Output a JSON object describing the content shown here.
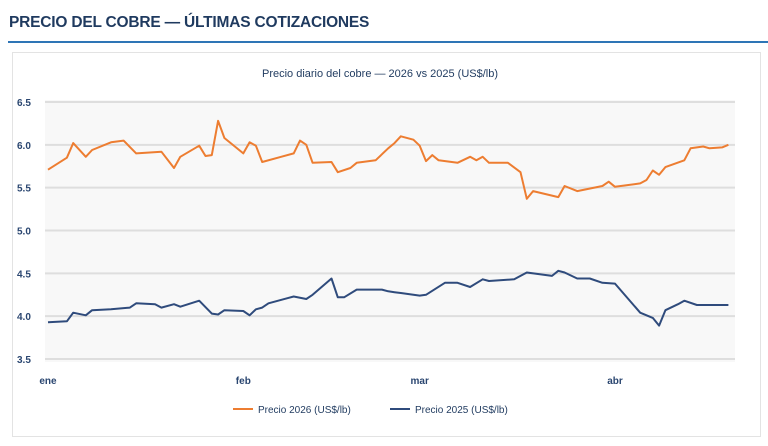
{
  "header": {
    "title": "PRECIO DEL COBRE — ÚLTIMAS COTIZACIONES"
  },
  "chart_data": {
    "type": "line",
    "title": "Precio diario del cobre — 2026 vs 2025 (US$/lb)",
    "xlabel": "",
    "ylabel": "",
    "ylim": [
      3.5,
      6.5
    ],
    "yticks": [
      "6.5",
      "6.0",
      "5.5",
      "5.0",
      "4.5",
      "4.0",
      "3.5"
    ],
    "xticks": [
      {
        "label": "ene",
        "date": "01-01"
      },
      {
        "label": "feb",
        "date": "02-01"
      },
      {
        "label": "mar",
        "date": "03-01"
      },
      {
        "label": "abr",
        "date": "04-01"
      }
    ],
    "grid": true,
    "legend_position": "bottom",
    "series": [
      {
        "name": "Precio 2026 (US$/lb)",
        "color": "#ed7d31",
        "points": [
          [
            "01-01",
            5.71
          ],
          [
            "01-04",
            5.85
          ],
          [
            "01-05",
            6.02
          ],
          [
            "01-07",
            5.86
          ],
          [
            "01-08",
            5.94
          ],
          [
            "01-11",
            6.03
          ],
          [
            "01-13",
            6.05
          ],
          [
            "01-15",
            5.9
          ],
          [
            "01-19",
            5.92
          ],
          [
            "01-21",
            5.73
          ],
          [
            "01-22",
            5.86
          ],
          [
            "01-25",
            5.99
          ],
          [
            "01-26",
            5.87
          ],
          [
            "01-27",
            5.88
          ],
          [
            "01-28",
            6.28
          ],
          [
            "01-29",
            6.08
          ],
          [
            "02-01",
            5.9
          ],
          [
            "02-02",
            6.03
          ],
          [
            "02-03",
            5.99
          ],
          [
            "02-04",
            5.8
          ],
          [
            "02-07",
            5.86
          ],
          [
            "02-09",
            5.9
          ],
          [
            "02-10",
            6.05
          ],
          [
            "02-11",
            6.0
          ],
          [
            "02-12",
            5.79
          ],
          [
            "02-15",
            5.8
          ],
          [
            "02-16",
            5.68
          ],
          [
            "02-18",
            5.73
          ],
          [
            "02-19",
            5.79
          ],
          [
            "02-22",
            5.82
          ],
          [
            "02-24",
            5.96
          ],
          [
            "02-25",
            6.02
          ],
          [
            "02-26",
            6.1
          ],
          [
            "02-28",
            6.06
          ],
          [
            "03-01",
            5.99
          ],
          [
            "03-02",
            5.81
          ],
          [
            "03-03",
            5.88
          ],
          [
            "03-04",
            5.82
          ],
          [
            "03-07",
            5.79
          ],
          [
            "03-09",
            5.86
          ],
          [
            "03-10",
            5.82
          ],
          [
            "03-11",
            5.86
          ],
          [
            "03-12",
            5.79
          ],
          [
            "03-15",
            5.79
          ],
          [
            "03-17",
            5.68
          ],
          [
            "03-18",
            5.37
          ],
          [
            "03-19",
            5.46
          ],
          [
            "03-23",
            5.39
          ],
          [
            "03-24",
            5.52
          ],
          [
            "03-26",
            5.46
          ],
          [
            "03-30",
            5.52
          ],
          [
            "03-31",
            5.57
          ],
          [
            "04-01",
            5.51
          ],
          [
            "04-05",
            5.55
          ],
          [
            "04-06",
            5.59
          ],
          [
            "04-07",
            5.7
          ],
          [
            "04-08",
            5.65
          ],
          [
            "04-09",
            5.74
          ],
          [
            "04-12",
            5.82
          ],
          [
            "04-13",
            5.96
          ],
          [
            "04-15",
            5.98
          ],
          [
            "04-16",
            5.96
          ],
          [
            "04-18",
            5.97
          ],
          [
            "04-19",
            6.0
          ]
        ]
      },
      {
        "name": "Precio 2025 (US$/lb)",
        "color": "#2f4b7c",
        "points": [
          [
            "01-01",
            3.93
          ],
          [
            "01-04",
            3.94
          ],
          [
            "01-05",
            4.04
          ],
          [
            "01-07",
            4.01
          ],
          [
            "01-08",
            4.07
          ],
          [
            "01-11",
            4.08
          ],
          [
            "01-14",
            4.1
          ],
          [
            "01-15",
            4.15
          ],
          [
            "01-18",
            4.14
          ],
          [
            "01-19",
            4.1
          ],
          [
            "01-21",
            4.14
          ],
          [
            "01-22",
            4.11
          ],
          [
            "01-25",
            4.18
          ],
          [
            "01-27",
            4.03
          ],
          [
            "01-28",
            4.02
          ],
          [
            "01-29",
            4.07
          ],
          [
            "02-01",
            4.06
          ],
          [
            "02-02",
            4.01
          ],
          [
            "02-03",
            4.08
          ],
          [
            "02-04",
            4.1
          ],
          [
            "02-05",
            4.15
          ],
          [
            "02-08",
            4.21
          ],
          [
            "02-09",
            4.23
          ],
          [
            "02-11",
            4.2
          ],
          [
            "02-12",
            4.25
          ],
          [
            "02-15",
            4.44
          ],
          [
            "02-16",
            4.22
          ],
          [
            "02-17",
            4.22
          ],
          [
            "02-19",
            4.31
          ],
          [
            "02-21",
            4.31
          ],
          [
            "02-23",
            4.31
          ],
          [
            "02-24",
            4.29
          ],
          [
            "02-25",
            4.28
          ],
          [
            "02-26",
            4.27
          ],
          [
            "03-01",
            4.24
          ],
          [
            "03-02",
            4.25
          ],
          [
            "03-05",
            4.39
          ],
          [
            "03-07",
            4.39
          ],
          [
            "03-09",
            4.34
          ],
          [
            "03-11",
            4.43
          ],
          [
            "03-12",
            4.41
          ],
          [
            "03-16",
            4.43
          ],
          [
            "03-18",
            4.51
          ],
          [
            "03-22",
            4.47
          ],
          [
            "03-23",
            4.53
          ],
          [
            "03-24",
            4.51
          ],
          [
            "03-26",
            4.44
          ],
          [
            "03-28",
            4.44
          ],
          [
            "03-30",
            4.39
          ],
          [
            "04-01",
            4.38
          ],
          [
            "04-05",
            4.04
          ],
          [
            "04-07",
            3.98
          ],
          [
            "04-08",
            3.89
          ],
          [
            "04-09",
            4.07
          ],
          [
            "04-11",
            4.14
          ],
          [
            "04-12",
            4.18
          ],
          [
            "04-14",
            4.13
          ],
          [
            "04-19",
            4.13
          ]
        ]
      }
    ]
  }
}
